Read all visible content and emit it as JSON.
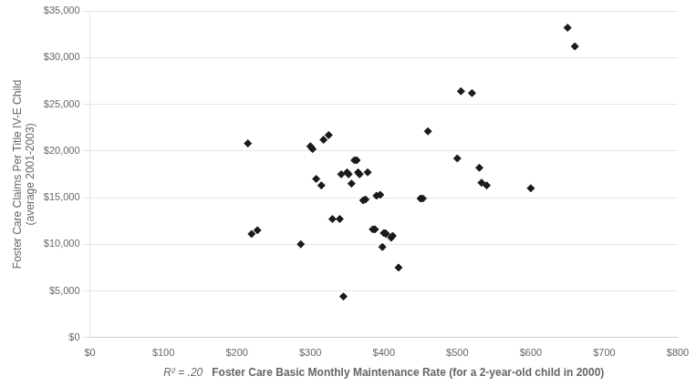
{
  "chart_data": {
    "type": "scatter",
    "x": [
      215,
      220,
      228,
      287,
      300,
      303,
      308,
      315,
      318,
      325,
      330,
      340,
      342,
      350,
      352,
      356,
      360,
      363,
      365,
      367,
      372,
      375,
      378,
      385,
      388,
      390,
      395,
      398,
      400,
      402,
      403,
      410,
      412,
      420,
      345,
      450,
      453,
      460,
      500,
      505,
      520,
      530,
      533,
      540,
      600,
      650,
      660
    ],
    "values": [
      20800,
      11100,
      11500,
      10000,
      20500,
      20200,
      17000,
      16300,
      21200,
      21700,
      12700,
      12700,
      17500,
      17700,
      17500,
      16500,
      19000,
      19000,
      17700,
      17500,
      14700,
      14800,
      17700,
      11600,
      11600,
      15200,
      15300,
      9700,
      11200,
      11200,
      11100,
      10700,
      10900,
      7500,
      4400,
      14900,
      14900,
      22100,
      19200,
      26400,
      26200,
      18200,
      16600,
      16300,
      16000,
      33200,
      31200
    ],
    "color": "#1a1a1a",
    "marker": "diamond",
    "xlabel": "Foster Care Basic Monthly Maintenance Rate (for a 2-year-old child in 2000)",
    "annotation": "R² = .20",
    "ylabel": "Foster Care Claims Per Title IV-E Child\n(average 2001-2003)",
    "xlim": [
      0,
      800
    ],
    "ylim": [
      0,
      35000
    ],
    "xticks": [
      {
        "value": 0,
        "label": "$0"
      },
      {
        "value": 100,
        "label": "$100"
      },
      {
        "value": 200,
        "label": "$200"
      },
      {
        "value": 300,
        "label": "$300"
      },
      {
        "value": 400,
        "label": "$400"
      },
      {
        "value": 500,
        "label": "$500"
      },
      {
        "value": 600,
        "label": "$600"
      },
      {
        "value": 700,
        "label": "$700"
      },
      {
        "value": 800,
        "label": "$800"
      }
    ],
    "yticks": [
      {
        "value": 0,
        "label": "$0"
      },
      {
        "value": 5000,
        "label": "$5,000"
      },
      {
        "value": 10000,
        "label": "$10,000"
      },
      {
        "value": 15000,
        "label": "$15,000"
      },
      {
        "value": 20000,
        "label": "$20,000"
      },
      {
        "value": 25000,
        "label": "$25,000"
      },
      {
        "value": 30000,
        "label": "$30,000"
      },
      {
        "value": 35000,
        "label": "$35,000"
      }
    ],
    "grid": "y"
  }
}
